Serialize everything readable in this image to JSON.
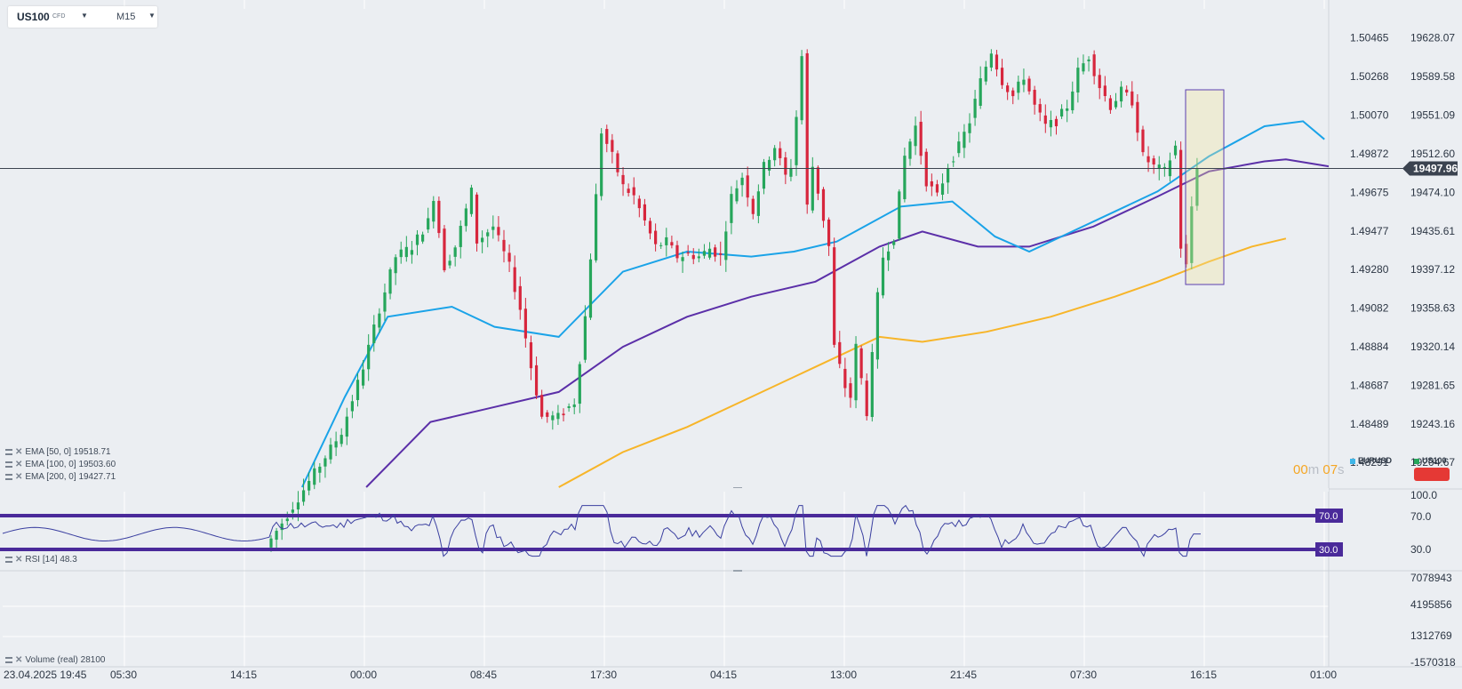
{
  "header": {
    "symbol": "US100",
    "type": "CFD",
    "timeframe": "M15"
  },
  "price_axis": {
    "labels": [
      "19628.07",
      "19589.58",
      "19551.09",
      "19512.60",
      "19474.10",
      "19435.61",
      "19397.12",
      "19358.63",
      "19320.14",
      "19281.65",
      "19243.16",
      "19204.67"
    ]
  },
  "eurusd_axis": {
    "labels": [
      "1.50465",
      "1.50268",
      "1.50070",
      "1.49872",
      "1.49675",
      "1.49477",
      "1.49280",
      "1.49082",
      "1.48884",
      "1.48687",
      "1.48489",
      "1.48291"
    ]
  },
  "current_price": "19497.96",
  "time_axis": {
    "labels": [
      "23.04.2025 19:45",
      "05:30",
      "14:15",
      "00:00",
      "08:45",
      "17:30",
      "04:15",
      "13:00",
      "21:45",
      "07:30",
      "16:15",
      "01:00"
    ]
  },
  "indicators": {
    "ema50": {
      "label": "EMA [50, 0]",
      "value": "19518.71",
      "color": "#1aa3e8"
    },
    "ema100": {
      "label": "EMA [100, 0]",
      "value": "19503.60",
      "color": "#5b2fa8"
    },
    "ema200": {
      "label": "EMA [200, 0]",
      "value": "19427.71",
      "color": "#f7b529"
    }
  },
  "timer": {
    "minutes": "00",
    "m_unit": "m",
    "seconds": "07",
    "s_unit": "s"
  },
  "legend": {
    "eurusd": "EURUSD",
    "us100": "US100"
  },
  "rsi": {
    "label": "RSI [14]",
    "value": "48.3",
    "axis": [
      "100.0",
      "70.0",
      "30.0"
    ],
    "upper": "70.0",
    "lower": "30.0"
  },
  "volume": {
    "label": "Volume (real)",
    "value": "28100",
    "axis": [
      "7078943",
      "4195856",
      "1312769",
      "-1570318"
    ]
  },
  "colors": {
    "up": "#26a65b",
    "down": "#d7263d",
    "band": "#4a2a9a"
  },
  "chart_data": {
    "type": "candlestick",
    "title": "",
    "symbol": "US100",
    "timeframe": "M15",
    "ylim": [
      19180,
      19650
    ],
    "x_ticks": [
      "23.04.2025 19:45",
      "05:30",
      "14:15",
      "00:00",
      "08:45",
      "17:30",
      "04:15",
      "13:00",
      "21:45",
      "07:30",
      "16:15",
      "01:00"
    ],
    "key_points": [
      {
        "t": 0,
        "price": 19120
      },
      {
        "t": 14,
        "price": 19235
      },
      {
        "t": 18,
        "price": 19300
      },
      {
        "t": 21,
        "price": 19358
      },
      {
        "t": 24,
        "price": 19410
      },
      {
        "t": 27,
        "price": 19420
      },
      {
        "t": 30,
        "price": 19445
      },
      {
        "t": 31,
        "price": 19470
      },
      {
        "t": 33,
        "price": 19400
      },
      {
        "t": 35,
        "price": 19420
      },
      {
        "t": 38,
        "price": 19475
      },
      {
        "t": 39,
        "price": 19425
      },
      {
        "t": 42,
        "price": 19440
      },
      {
        "t": 45,
        "price": 19400
      },
      {
        "t": 47,
        "price": 19358
      },
      {
        "t": 49,
        "price": 19300
      },
      {
        "t": 51,
        "price": 19250
      },
      {
        "t": 54,
        "price": 19250
      },
      {
        "t": 57,
        "price": 19265
      },
      {
        "t": 59,
        "price": 19350
      },
      {
        "t": 61,
        "price": 19470
      },
      {
        "t": 62,
        "price": 19535
      },
      {
        "t": 64,
        "price": 19510
      },
      {
        "t": 66,
        "price": 19480
      },
      {
        "t": 68,
        "price": 19470
      },
      {
        "t": 70,
        "price": 19445
      },
      {
        "t": 72,
        "price": 19420
      },
      {
        "t": 74,
        "price": 19425
      },
      {
        "t": 76,
        "price": 19410
      },
      {
        "t": 78,
        "price": 19412
      },
      {
        "t": 80,
        "price": 19410
      },
      {
        "t": 82,
        "price": 19418
      },
      {
        "t": 84,
        "price": 19410
      },
      {
        "t": 86,
        "price": 19470
      },
      {
        "t": 88,
        "price": 19490
      },
      {
        "t": 90,
        "price": 19455
      },
      {
        "t": 92,
        "price": 19500
      },
      {
        "t": 94,
        "price": 19520
      },
      {
        "t": 96,
        "price": 19490
      },
      {
        "t": 97,
        "price": 19500
      },
      {
        "t": 98,
        "price": 19550
      },
      {
        "t": 99,
        "price": 19610
      },
      {
        "t": 100,
        "price": 19460
      },
      {
        "t": 101,
        "price": 19500
      },
      {
        "t": 102,
        "price": 19475
      },
      {
        "t": 104,
        "price": 19420
      },
      {
        "t": 105,
        "price": 19320
      },
      {
        "t": 107,
        "price": 19280
      },
      {
        "t": 108,
        "price": 19270
      },
      {
        "t": 109,
        "price": 19320
      },
      {
        "t": 111,
        "price": 19255
      },
      {
        "t": 112,
        "price": 19310
      },
      {
        "t": 113,
        "price": 19370
      },
      {
        "t": 114,
        "price": 19410
      },
      {
        "t": 116,
        "price": 19430
      },
      {
        "t": 118,
        "price": 19510
      },
      {
        "t": 120,
        "price": 19540
      },
      {
        "t": 122,
        "price": 19485
      },
      {
        "t": 124,
        "price": 19470
      },
      {
        "t": 126,
        "price": 19500
      },
      {
        "t": 128,
        "price": 19520
      },
      {
        "t": 130,
        "price": 19545
      },
      {
        "t": 132,
        "price": 19585
      },
      {
        "t": 134,
        "price": 19615
      },
      {
        "t": 136,
        "price": 19585
      },
      {
        "t": 138,
        "price": 19570
      },
      {
        "t": 140,
        "price": 19590
      },
      {
        "t": 142,
        "price": 19560
      },
      {
        "t": 144,
        "price": 19540
      },
      {
        "t": 146,
        "price": 19545
      },
      {
        "t": 148,
        "price": 19560
      },
      {
        "t": 150,
        "price": 19595
      },
      {
        "t": 152,
        "price": 19610
      },
      {
        "t": 154,
        "price": 19580
      },
      {
        "t": 156,
        "price": 19560
      },
      {
        "t": 158,
        "price": 19575
      },
      {
        "t": 160,
        "price": 19565
      },
      {
        "t": 162,
        "price": 19510
      },
      {
        "t": 164,
        "price": 19500
      },
      {
        "t": 166,
        "price": 19495
      },
      {
        "t": 168,
        "price": 19520
      },
      {
        "t": 169,
        "price": 19420
      },
      {
        "t": 170,
        "price": 19400
      },
      {
        "t": 171,
        "price": 19460
      },
      {
        "t": 172,
        "price": 19497.96
      }
    ],
    "ema50_path": [
      [
        70,
        19180
      ],
      [
        80,
        19270
      ],
      [
        90,
        19350
      ],
      [
        105,
        19360
      ],
      [
        115,
        19340
      ],
      [
        130,
        19330
      ],
      [
        145,
        19395
      ],
      [
        160,
        19415
      ],
      [
        175,
        19410
      ],
      [
        185,
        19415
      ],
      [
        195,
        19425
      ],
      [
        210,
        19460
      ],
      [
        222,
        19465
      ],
      [
        232,
        19430
      ],
      [
        240,
        19415
      ],
      [
        255,
        19445
      ],
      [
        270,
        19475
      ],
      [
        282,
        19510
      ],
      [
        295,
        19540
      ],
      [
        304,
        19545
      ],
      [
        309,
        19527
      ]
    ],
    "ema100_path": [
      [
        85,
        19180
      ],
      [
        100,
        19245
      ],
      [
        115,
        19260
      ],
      [
        130,
        19275
      ],
      [
        145,
        19320
      ],
      [
        160,
        19350
      ],
      [
        175,
        19370
      ],
      [
        190,
        19385
      ],
      [
        205,
        19420
      ],
      [
        215,
        19435
      ],
      [
        228,
        19420
      ],
      [
        240,
        19420
      ],
      [
        255,
        19440
      ],
      [
        270,
        19470
      ],
      [
        282,
        19495
      ],
      [
        295,
        19505
      ],
      [
        300,
        19507
      ],
      [
        310,
        19500
      ]
    ],
    "ema200_path": [
      [
        130,
        19180
      ],
      [
        145,
        19215
      ],
      [
        160,
        19240
      ],
      [
        175,
        19270
      ],
      [
        190,
        19300
      ],
      [
        205,
        19330
      ],
      [
        215,
        19325
      ],
      [
        230,
        19335
      ],
      [
        245,
        19350
      ],
      [
        260,
        19370
      ],
      [
        270,
        19385
      ],
      [
        282,
        19405
      ],
      [
        292,
        19420
      ],
      [
        300,
        19428
      ]
    ],
    "ema_x_unit": "index of 15-minute bar across full chart width (~310 bars)",
    "rsi": {
      "period": 14,
      "last": 48.3,
      "levels": [
        70,
        30
      ],
      "ylim": [
        0,
        100
      ]
    },
    "volume_last": 28100
  }
}
